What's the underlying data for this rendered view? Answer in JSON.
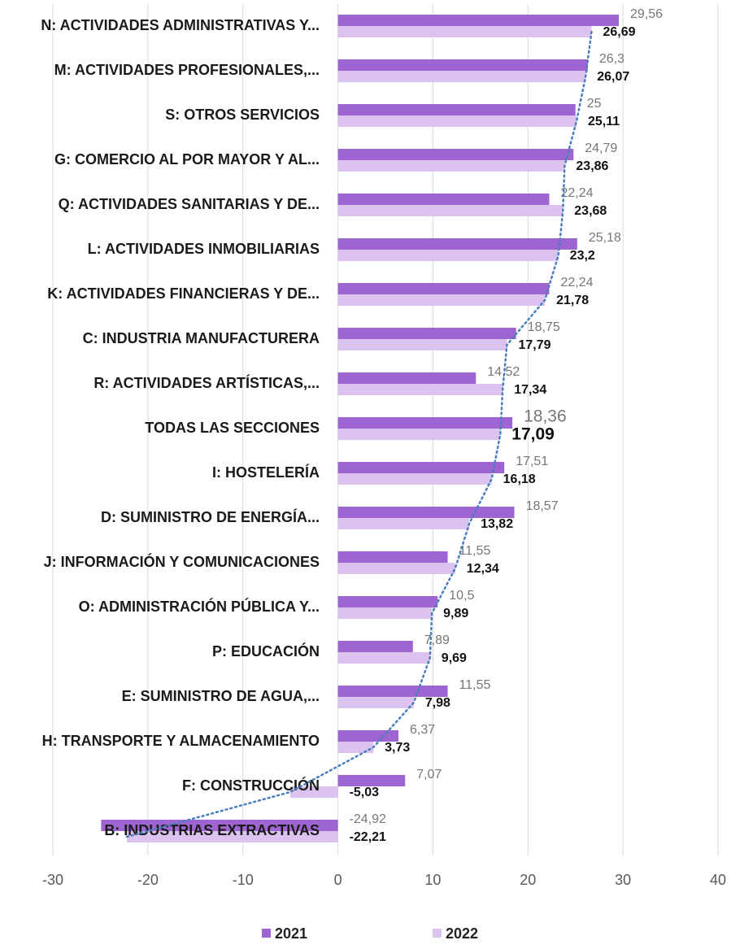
{
  "chart_data": {
    "type": "bar",
    "orientation": "horizontal",
    "categories": [
      "N: ACTIVIDADES ADMINISTRATIVAS Y...",
      "M: ACTIVIDADES PROFESIONALES,...",
      "S: OTROS SERVICIOS",
      "G: COMERCIO AL POR MAYOR Y AL...",
      "Q: ACTIVIDADES SANITARIAS Y DE...",
      "L: ACTIVIDADES INMOBILIARIAS",
      "K: ACTIVIDADES FINANCIERAS Y DE...",
      "C: INDUSTRIA MANUFACTURERA",
      "R: ACTIVIDADES ARTÍSTICAS,...",
      "TODAS LAS SECCIONES",
      "I: HOSTELERÍA",
      "D: SUMINISTRO DE ENERGÍA...",
      "J: INFORMACIÓN Y COMUNICACIONES",
      "O: ADMINISTRACIÓN PÚBLICA Y...",
      "P: EDUCACIÓN",
      "E: SUMINISTRO DE AGUA,...",
      "H: TRANSPORTE Y ALMACENAMIENTO",
      "F: CONSTRUCCIÓN",
      "B: INDUSTRIAS EXTRACTIVAS"
    ],
    "series": [
      {
        "name": "2021",
        "color": "#9e64d1",
        "values": [
          29.56,
          26.3,
          25,
          24.79,
          22.24,
          25.18,
          22.24,
          18.75,
          14.52,
          18.36,
          17.51,
          18.57,
          11.55,
          10.5,
          7.89,
          11.55,
          6.37,
          7.07,
          -24.92
        ],
        "value_labels": [
          "29,56",
          "26,3",
          "25",
          "24,79",
          "22,24",
          "25,18",
          "22,24",
          "18,75",
          "14,52",
          "18,36",
          "17,51",
          "18,57",
          "11,55",
          "10,5",
          "7,89",
          "11,55",
          "6,37",
          "7,07",
          "-24,92"
        ]
      },
      {
        "name": "2022",
        "color": "#dcc3ef",
        "values": [
          26.69,
          26.07,
          25.11,
          23.86,
          23.68,
          23.2,
          21.78,
          17.79,
          17.34,
          17.09,
          16.18,
          13.82,
          12.34,
          9.89,
          9.69,
          7.98,
          3.73,
          -5.03,
          -22.21
        ],
        "value_labels": [
          "26,69",
          "26,07",
          "25,11",
          "23,86",
          "23,68",
          "23,2",
          "21,78",
          "17,79",
          "17,34",
          "17,09",
          "16,18",
          "13,82",
          "12,34",
          "9,89",
          "9,69",
          "7,98",
          "3,73",
          "-5,03",
          "-22,21"
        ]
      }
    ],
    "xlim": [
      -30,
      40
    ],
    "xticks": [
      -30,
      -20,
      -10,
      0,
      10,
      20,
      30,
      40
    ],
    "grid": true,
    "legend": "bottom"
  }
}
